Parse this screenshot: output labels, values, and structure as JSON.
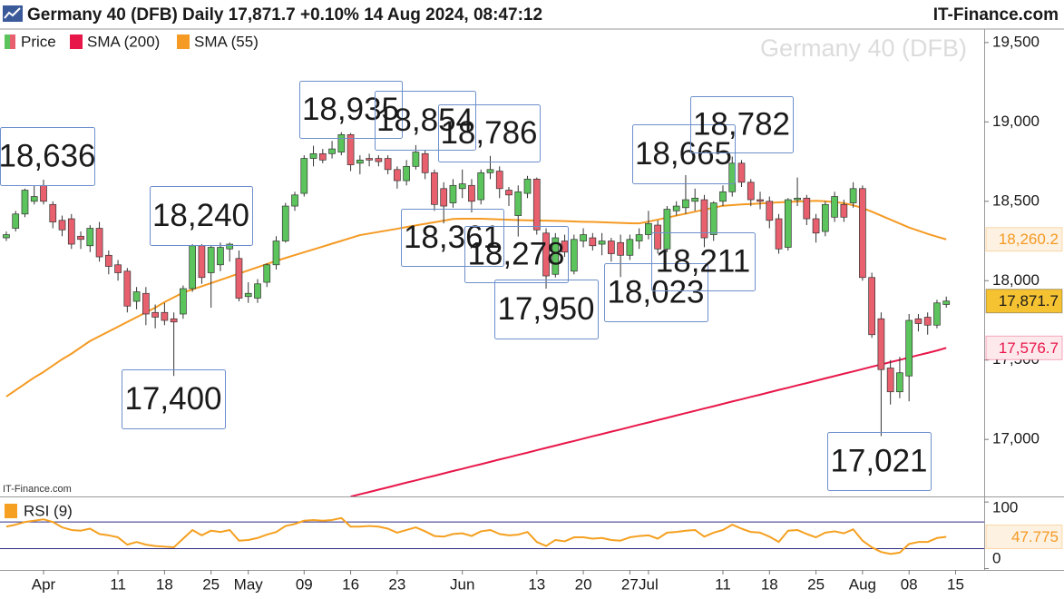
{
  "header": {
    "title": "Germany 40 (DFB) Daily 17,871.7 +0.10% 14 Aug 2024, 08:47:12",
    "brand": "IT-Finance.com"
  },
  "chart_data": [
    {
      "type": "candlestick",
      "watermark": "Germany 40 (DFB)",
      "source": "IT-Finance.com",
      "categories": [
        null,
        null,
        null,
        null,
        "Apr",
        null,
        null,
        null,
        null,
        null,
        null,
        null,
        "11",
        null,
        null,
        null,
        null,
        "18",
        null,
        null,
        null,
        null,
        "25",
        null,
        null,
        null,
        "May",
        null,
        null,
        null,
        null,
        null,
        "09",
        null,
        null,
        null,
        null,
        "16",
        null,
        null,
        null,
        null,
        "23",
        null,
        null,
        null,
        null,
        null,
        null,
        "Jun",
        null,
        null,
        null,
        null,
        null,
        null,
        null,
        "13",
        null,
        null,
        null,
        null,
        "20",
        null,
        null,
        null,
        null,
        "27",
        null,
        "Jul",
        null,
        null,
        null,
        null,
        null,
        null,
        null,
        "11",
        null,
        null,
        null,
        null,
        "18",
        null,
        null,
        null,
        null,
        "25",
        null,
        null,
        null,
        null,
        "Aug",
        null,
        null,
        null,
        null,
        "08",
        null,
        null,
        null,
        null,
        "15"
      ],
      "series": [
        {
          "name": "Price",
          "type": "candlestick",
          "color_up": "#5cc45c",
          "color_down": "#e8606e",
          "label_fill": "#f5c232",
          "label_color": "#1a1a1a",
          "last_label": "17,871.7",
          "open": [
            18270,
            18330,
            18420,
            18500,
            18600,
            18480,
            18380,
            18390,
            18280,
            18220,
            18330,
            18160,
            18100,
            18060,
            17870,
            17920,
            17800,
            17800,
            17760,
            17790,
            17950,
            18220,
            18050,
            18100,
            18200,
            18140,
            17900,
            17890,
            17990,
            18100,
            18250,
            18470,
            18550,
            18770,
            18800,
            18800,
            18810,
            18920,
            18740,
            18770,
            18770,
            18770,
            18700,
            18630,
            18720,
            18800,
            18680,
            18580,
            18490,
            18580,
            18600,
            18510,
            18680,
            18690,
            18570,
            18410,
            18550,
            18640,
            18300,
            18040,
            18250,
            18060,
            18250,
            18270,
            18230,
            18250,
            18240,
            18160,
            18250,
            18290,
            18350,
            18200,
            18440,
            18460,
            18500,
            18510,
            18290,
            18500,
            18560,
            18740,
            18620,
            18510,
            18500,
            18390,
            18210,
            18510,
            18520,
            18390,
            18310,
            18400,
            18480,
            18490,
            18580,
            18020,
            17760,
            17450,
            17300,
            17400,
            17760,
            17770,
            17720,
            17850,
            null
          ],
          "high": [
            18310,
            18440,
            18580,
            18600,
            18636,
            18500,
            18410,
            18420,
            18310,
            18350,
            18370,
            18190,
            18130,
            18080,
            17960,
            17960,
            17850,
            17860,
            17800,
            17970,
            18230,
            18230,
            18220,
            18240,
            18240,
            18190,
            17990,
            18010,
            18110,
            18280,
            18490,
            18560,
            18790,
            18850,
            18830,
            18880,
            18935,
            18930,
            18790,
            18800,
            18790,
            18790,
            18720,
            18760,
            18854,
            18820,
            18700,
            18620,
            18640,
            18700,
            18640,
            18700,
            18786,
            18720,
            18590,
            18600,
            18660,
            18650,
            18330,
            18300,
            18290,
            18290,
            18330,
            18300,
            18300,
            18270,
            18290,
            18290,
            18330,
            18440,
            18380,
            18470,
            18500,
            18665,
            18580,
            18540,
            18500,
            18600,
            18782,
            18760,
            18640,
            18560,
            18530,
            18420,
            18520,
            18650,
            18540,
            18420,
            18500,
            18560,
            18510,
            18620,
            18600,
            18050,
            17800,
            17500,
            17520,
            17790,
            17790,
            17800,
            17880,
            17900,
            null
          ],
          "low": [
            18250,
            18310,
            18400,
            18480,
            18480,
            18330,
            18280,
            18200,
            18200,
            18180,
            18120,
            18040,
            18000,
            17800,
            17820,
            17720,
            17700,
            17720,
            17400,
            17760,
            17930,
            17980,
            17830,
            18060,
            18120,
            17870,
            17860,
            17860,
            17960,
            18070,
            18240,
            18440,
            18530,
            18720,
            18740,
            18770,
            18790,
            18690,
            18670,
            18720,
            18720,
            18670,
            18580,
            18600,
            18700,
            18640,
            18440,
            18361,
            18460,
            18520,
            18430,
            18480,
            18640,
            18520,
            18470,
            18278,
            18520,
            18290,
            17950,
            18020,
            18150,
            18040,
            18210,
            18190,
            18160,
            18120,
            18023,
            18130,
            18200,
            18260,
            18170,
            18180,
            18410,
            18420,
            18440,
            18211,
            18250,
            18470,
            18530,
            18590,
            18470,
            18450,
            18330,
            18170,
            18190,
            18470,
            18350,
            18240,
            18280,
            18370,
            18370,
            18460,
            18000,
            17640,
            17021,
            17220,
            17260,
            17240,
            17680,
            17660,
            17700,
            17830,
            null
          ],
          "close": [
            18290,
            18420,
            18570,
            18530,
            18500,
            18370,
            18320,
            18230,
            18260,
            18330,
            18150,
            18090,
            18050,
            17840,
            17930,
            17790,
            17770,
            17750,
            17740,
            17950,
            18220,
            18020,
            18210,
            18210,
            18230,
            17890,
            17920,
            17980,
            18100,
            18250,
            18470,
            18540,
            18770,
            18800,
            18760,
            18830,
            18920,
            18730,
            18760,
            18760,
            18750,
            18700,
            18630,
            18720,
            18810,
            18680,
            18480,
            18470,
            18600,
            18610,
            18500,
            18680,
            18700,
            18580,
            18540,
            18560,
            18640,
            18320,
            18030,
            18270,
            18180,
            18260,
            18290,
            18220,
            18250,
            18170,
            18160,
            18260,
            18290,
            18360,
            18200,
            18450,
            18470,
            18510,
            18520,
            18270,
            18490,
            18560,
            18740,
            18620,
            18510,
            18500,
            18380,
            18200,
            18510,
            18520,
            18390,
            18300,
            18480,
            18530,
            18400,
            18580,
            18020,
            17660,
            17440,
            17300,
            17420,
            17750,
            17730,
            17720,
            17860,
            17871.7,
            null
          ]
        },
        {
          "name": "SMA (200)",
          "type": "line",
          "color": "#e8174a",
          "label_fill": "#fde8ec",
          "label_color": "#e8174a",
          "last_label": "17,576.7",
          "values": [
            null,
            null,
            null,
            null,
            null,
            null,
            null,
            null,
            null,
            null,
            null,
            null,
            null,
            null,
            null,
            null,
            null,
            null,
            null,
            null,
            null,
            null,
            null,
            null,
            null,
            null,
            null,
            null,
            null,
            null,
            null,
            null,
            null,
            null,
            null,
            null,
            null,
            16640,
            16655,
            16669,
            16684,
            16698,
            16713,
            16728,
            16742,
            16757,
            16771,
            16786,
            16801,
            16815,
            16830,
            16844,
            16859,
            16874,
            16888,
            16903,
            16917,
            16932,
            16947,
            16961,
            16976,
            16990,
            17005,
            17020,
            17034,
            17049,
            17063,
            17078,
            17093,
            17107,
            17122,
            17136,
            17151,
            17166,
            17180,
            17195,
            17209,
            17224,
            17239,
            17253,
            17268,
            17282,
            17297,
            17312,
            17326,
            17341,
            17355,
            17370,
            17385,
            17399,
            17414,
            17428,
            17443,
            17458,
            17472,
            17487,
            17501,
            17516,
            17531,
            17545,
            17560,
            17576.7,
            null
          ]
        },
        {
          "name": "SMA (55)",
          "type": "line",
          "color": "#f59a23",
          "label_fill": "#fdf1e2",
          "label_color": "#f59a23",
          "last_label": "18,260.2",
          "values": [
            17270,
            17310,
            17350,
            17390,
            17425,
            17465,
            17505,
            17540,
            17580,
            17620,
            17650,
            17680,
            17710,
            17740,
            17770,
            17800,
            17830,
            17865,
            17895,
            17925,
            17945,
            17965,
            17985,
            18005,
            18025,
            18045,
            18065,
            18085,
            18105,
            18125,
            18143,
            18161,
            18179,
            18197,
            18215,
            18233,
            18251,
            18269,
            18287,
            18297,
            18307,
            18317,
            18327,
            18338,
            18348,
            18358,
            18368,
            18378,
            18389,
            18390,
            18390,
            18390,
            18388,
            18386,
            18384,
            18382,
            18380,
            18379,
            18378,
            18377,
            18375,
            18373,
            18371,
            18370,
            18368,
            18366,
            18364,
            18362,
            18361,
            18372,
            18385,
            18397,
            18410,
            18422,
            18435,
            18447,
            18460,
            18472,
            18476,
            18480,
            18483,
            18486,
            18490,
            18493,
            18496,
            18499,
            18501,
            18503,
            18500,
            18495,
            18488,
            18475,
            18458,
            18435,
            18410,
            18385,
            18360,
            18335,
            18315,
            18295,
            18277,
            18260.2,
            null
          ]
        }
      ],
      "annotations": [
        {
          "label": "18,636",
          "value": 18636
        },
        {
          "label": "17,400",
          "value": 17400
        },
        {
          "label": "18,240",
          "value": 18240
        },
        {
          "label": "18,935",
          "value": 18935
        },
        {
          "label": "18,854",
          "value": 18854
        },
        {
          "label": "18,786",
          "value": 18786
        },
        {
          "label": "18,361",
          "value": 18361
        },
        {
          "label": "18,278",
          "value": 18278
        },
        {
          "label": "17,950",
          "value": 17950
        },
        {
          "label": "18,023",
          "value": 18023
        },
        {
          "label": "18,665",
          "value": 18665
        },
        {
          "label": "18,211",
          "value": 18211
        },
        {
          "label": "18,782",
          "value": 18782
        },
        {
          "label": "17,021",
          "value": 17021
        }
      ],
      "ylim": [
        16641,
        19585
      ],
      "yticks": [
        {
          "value": 17000,
          "label": "17,000"
        },
        {
          "value": 17500,
          "label": "17,500"
        },
        {
          "value": 18000,
          "label": "18,000"
        },
        {
          "value": 18500,
          "label": "18,500"
        },
        {
          "value": 19000,
          "label": "19,000"
        },
        {
          "value": 19500,
          "label": "19,500"
        }
      ]
    },
    {
      "type": "line",
      "series": [
        {
          "name": "RSI (9)",
          "color": "#f5a020",
          "label_fill": "#fdf1e2",
          "label_color": "#f59a23",
          "last_label": "47.775",
          "values": [
            63,
            66,
            70,
            72,
            74,
            70,
            62,
            58,
            57,
            60,
            52,
            50,
            47,
            36,
            40,
            36,
            34,
            33,
            32,
            45,
            58,
            50,
            57,
            55,
            58,
            42,
            43,
            46,
            51,
            55,
            64,
            67,
            72,
            73,
            72,
            73,
            76,
            63,
            63,
            64,
            63,
            60,
            54,
            58,
            62,
            56,
            49,
            48,
            52,
            53,
            49,
            56,
            58,
            52,
            50,
            51,
            55,
            40,
            34,
            43,
            41,
            47,
            47,
            45,
            46,
            43,
            42,
            47,
            49,
            50,
            45,
            54,
            55,
            57,
            58,
            48,
            54,
            58,
            66,
            60,
            55,
            54,
            48,
            40,
            57,
            58,
            52,
            47,
            54,
            56,
            53,
            59,
            42,
            32,
            25,
            22,
            24,
            37,
            40,
            40,
            46,
            47.775,
            null
          ]
        }
      ],
      "levels": [
        30,
        70
      ],
      "level_color": "#2e2e86",
      "ylim": [
        -2,
        107
      ],
      "yticks": [
        0,
        100
      ]
    }
  ]
}
